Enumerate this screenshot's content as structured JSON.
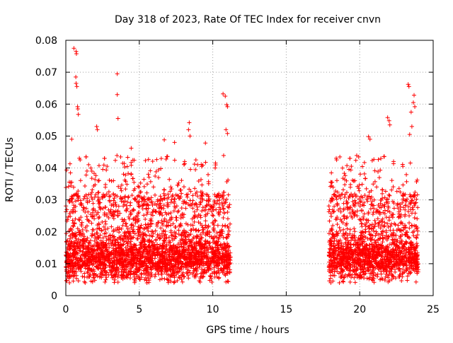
{
  "chart_data": {
    "type": "scatter",
    "title": "Day 318 of 2023, Rate Of TEC Index for receiver cnvn",
    "xlabel": "GPS time / hours",
    "ylabel": "ROTI / TECUs",
    "xlim": [
      0,
      25
    ],
    "ylim": [
      0,
      0.08
    ],
    "x_ticks": [
      "0",
      "5",
      "10",
      "15",
      "20",
      "25"
    ],
    "y_ticks": [
      "0",
      "0.01",
      "0.02",
      "0.03",
      "0.04",
      "0.05",
      "0.06",
      "0.07",
      "0.08"
    ],
    "x_tick_values": [
      0,
      5,
      10,
      15,
      20,
      25
    ],
    "y_tick_values": [
      0,
      0.01,
      0.02,
      0.03,
      0.04,
      0.05,
      0.06,
      0.07,
      0.08
    ],
    "grid": true,
    "marker": "+",
    "series_color": "#ff0000",
    "coverage_segments": [
      [
        0,
        11.2
      ],
      [
        17.9,
        24
      ]
    ],
    "outliers": [
      {
        "x": 0.55,
        "y": 0.0775
      },
      {
        "x": 0.7,
        "y": 0.0765
      },
      {
        "x": 0.72,
        "y": 0.0758
      },
      {
        "x": 0.68,
        "y": 0.0685
      },
      {
        "x": 0.7,
        "y": 0.0665
      },
      {
        "x": 0.75,
        "y": 0.0655
      },
      {
        "x": 0.8,
        "y": 0.0592
      },
      {
        "x": 0.82,
        "y": 0.0585
      },
      {
        "x": 0.85,
        "y": 0.0568
      },
      {
        "x": 3.5,
        "y": 0.0695
      },
      {
        "x": 3.5,
        "y": 0.063
      },
      {
        "x": 3.55,
        "y": 0.0555
      },
      {
        "x": 2.1,
        "y": 0.053
      },
      {
        "x": 2.15,
        "y": 0.052
      },
      {
        "x": 8.4,
        "y": 0.0542
      },
      {
        "x": 8.35,
        "y": 0.052
      },
      {
        "x": 8.45,
        "y": 0.05
      },
      {
        "x": 10.7,
        "y": 0.0632
      },
      {
        "x": 10.85,
        "y": 0.0625
      },
      {
        "x": 10.95,
        "y": 0.0598
      },
      {
        "x": 11.0,
        "y": 0.0592
      },
      {
        "x": 10.9,
        "y": 0.052
      },
      {
        "x": 11.0,
        "y": 0.0508
      },
      {
        "x": 20.6,
        "y": 0.0498
      },
      {
        "x": 20.7,
        "y": 0.049
      },
      {
        "x": 21.9,
        "y": 0.0558
      },
      {
        "x": 22.0,
        "y": 0.0548
      },
      {
        "x": 22.05,
        "y": 0.0535
      },
      {
        "x": 23.3,
        "y": 0.0662
      },
      {
        "x": 23.35,
        "y": 0.0655
      },
      {
        "x": 23.7,
        "y": 0.0628
      },
      {
        "x": 23.65,
        "y": 0.0605
      },
      {
        "x": 23.75,
        "y": 0.0592
      },
      {
        "x": 23.5,
        "y": 0.0575
      },
      {
        "x": 23.55,
        "y": 0.053
      },
      {
        "x": 23.4,
        "y": 0.0505
      },
      {
        "x": 0.4,
        "y": 0.049
      },
      {
        "x": 7.4,
        "y": 0.048
      },
      {
        "x": 4.45,
        "y": 0.0462
      },
      {
        "x": 6.7,
        "y": 0.0488
      },
      {
        "x": 9.5,
        "y": 0.0478
      }
    ]
  }
}
